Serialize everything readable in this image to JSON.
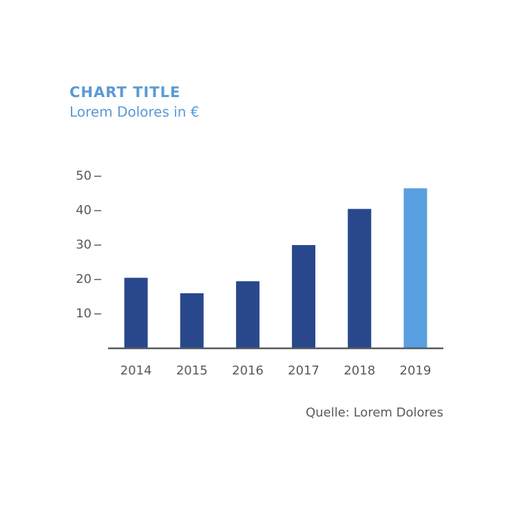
{
  "chart_data": {
    "type": "bar",
    "title": "CHART TITLE",
    "subtitle": "Lorem Dolores in €",
    "categories": [
      "2014",
      "2015",
      "2016",
      "2017",
      "2018",
      "2019"
    ],
    "values": [
      20.5,
      16,
      19.5,
      30,
      40.5,
      46.5
    ],
    "colors": [
      "#29488c",
      "#29488c",
      "#29488c",
      "#29488c",
      "#29488c",
      "#59a0e0"
    ],
    "ylim": [
      0,
      50
    ],
    "yticks": [
      10,
      20,
      30,
      40,
      50
    ],
    "source": "Quelle: Lorem Dolores"
  }
}
